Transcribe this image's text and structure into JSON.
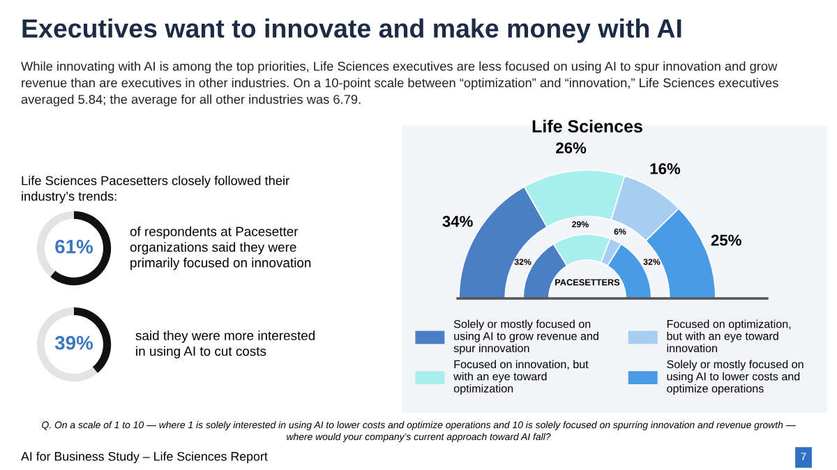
{
  "chart_data": [
    {
      "type": "other",
      "title": "Executives want to innovate and make money with AI",
      "subtitle": "While innovating with AI is among the top priorities, Life Sciences executives are less focused on using AI to spur innovation and grow\nrevenue than are executives in other industries. On a 10-point scale between “optimization” and “innovation,” Life Sciences executives\naveraged 5.84; the average for all other industries was 6.79.",
      "annotations": [
        "Life Sciences Pacesetters closely followed their\nindustry’s trends:",
        "Q. On a scale of 1 to 10 — where 1 is solely interested in using AI to lower costs and optimize operations and 10 is solely focused on spurring innovation and revenue growth —\nwhere would your company’s current approach toward AI fall?",
        "AI for Business Study – Life Sciences Report",
        "7"
      ]
    },
    {
      "type": "donut",
      "title": "Life Sciences",
      "legend": "bottom",
      "categories": [
        "Solely or mostly focused on\nusing AI to grow revenue and\nspur innovation",
        "Focused on innovation, but\nwith an eye toward\noptimization",
        "Focused on optimization,\nbut with an eye toward\ninnovation",
        "Solely or mostly focused on\nusing AI to lower costs and\noptimize operations"
      ],
      "colors": [
        "#4a7fc6",
        "#a8eeee",
        "#a6cdf2",
        "#4a9be6"
      ],
      "series": [
        {
          "values": [
            34,
            26,
            16,
            25
          ],
          "value_labels": [
            "34%",
            "26%",
            "16%",
            "25%"
          ]
        },
        {
          "name": "PACESETTERS",
          "values": [
            32,
            29,
            6,
            32
          ],
          "value_labels": [
            "32%",
            "29%",
            "6%",
            "32%"
          ]
        }
      ]
    },
    {
      "type": "donut",
      "categories": [
        null,
        null
      ],
      "values": [
        61,
        39
      ],
      "value_labels": [
        "61%",
        null
      ],
      "colors": [
        "#111111",
        "#e3e3e3"
      ],
      "annotations": [
        "of respondents at Pacesetter\norganizations said they were\nprimarily focused on innovation"
      ]
    },
    {
      "type": "donut",
      "categories": [
        null,
        null
      ],
      "values": [
        39,
        61
      ],
      "value_labels": [
        "39%",
        null
      ],
      "colors": [
        "#111111",
        "#e3e3e3"
      ],
      "annotations": [
        "said they were more interested\nin using AI to cut costs"
      ]
    }
  ]
}
